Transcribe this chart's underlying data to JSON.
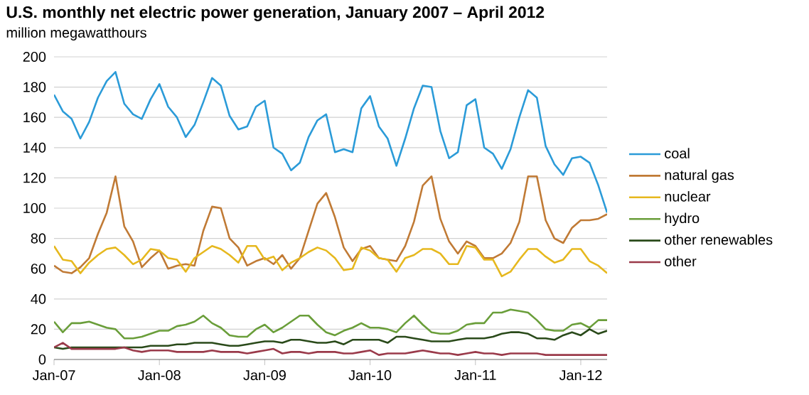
{
  "chart_data": {
    "type": "line",
    "title": "U.S. monthly net electric power generation, January 2007 – April 2012",
    "ylabel": "million megawatthours",
    "x": [
      "2007-01",
      "2007-02",
      "2007-03",
      "2007-04",
      "2007-05",
      "2007-06",
      "2007-07",
      "2007-08",
      "2007-09",
      "2007-10",
      "2007-11",
      "2007-12",
      "2008-01",
      "2008-02",
      "2008-03",
      "2008-04",
      "2008-05",
      "2008-06",
      "2008-07",
      "2008-08",
      "2008-09",
      "2008-10",
      "2008-11",
      "2008-12",
      "2009-01",
      "2009-02",
      "2009-03",
      "2009-04",
      "2009-05",
      "2009-06",
      "2009-07",
      "2009-08",
      "2009-09",
      "2009-10",
      "2009-11",
      "2009-12",
      "2010-01",
      "2010-02",
      "2010-03",
      "2010-04",
      "2010-05",
      "2010-06",
      "2010-07",
      "2010-08",
      "2010-09",
      "2010-10",
      "2010-11",
      "2010-12",
      "2011-01",
      "2011-02",
      "2011-03",
      "2011-04",
      "2011-05",
      "2011-06",
      "2011-07",
      "2011-08",
      "2011-09",
      "2011-10",
      "2011-11",
      "2011-12",
      "2012-01",
      "2012-02",
      "2012-03",
      "2012-04"
    ],
    "series": [
      {
        "name": "coal",
        "color": "#2b9bd8",
        "values": [
          175,
          164,
          159,
          146,
          157,
          173,
          184,
          190,
          169,
          162,
          159,
          172,
          182,
          167,
          160,
          147,
          155,
          170,
          186,
          181,
          161,
          152,
          154,
          167,
          171,
          140,
          136,
          125,
          130,
          147,
          158,
          162,
          137,
          139,
          137,
          166,
          174,
          154,
          146,
          128,
          146,
          166,
          181,
          180,
          151,
          133,
          137,
          168,
          172,
          140,
          136,
          126,
          139,
          160,
          178,
          173,
          141,
          129,
          122,
          133,
          134,
          130,
          115,
          97
        ]
      },
      {
        "name": "natural gas",
        "color": "#c07a35",
        "values": [
          62,
          58,
          57,
          61,
          67,
          83,
          97,
          121,
          88,
          78,
          61,
          67,
          72,
          60,
          62,
          63,
          62,
          85,
          101,
          100,
          80,
          74,
          62,
          65,
          67,
          63,
          69,
          60,
          67,
          85,
          103,
          110,
          94,
          74,
          65,
          73,
          75,
          67,
          66,
          65,
          75,
          91,
          115,
          121,
          93,
          78,
          70,
          78,
          75,
          67,
          67,
          70,
          77,
          91,
          121,
          121,
          92,
          80,
          77,
          87,
          92,
          92,
          93,
          96
        ]
      },
      {
        "name": "nuclear",
        "color": "#e6b81e",
        "values": [
          75,
          66,
          65,
          57,
          64,
          69,
          73,
          74,
          69,
          63,
          66,
          73,
          72,
          67,
          66,
          58,
          67,
          71,
          75,
          73,
          69,
          64,
          75,
          75,
          66,
          68,
          59,
          64,
          67,
          71,
          74,
          72,
          67,
          59,
          60,
          74,
          72,
          67,
          66,
          58,
          67,
          69,
          73,
          73,
          70,
          63,
          63,
          75,
          74,
          66,
          66,
          55,
          58,
          66,
          73,
          73,
          68,
          64,
          66,
          73,
          73,
          65,
          62,
          57
        ]
      },
      {
        "name": "hydro",
        "color": "#6a9e3a",
        "values": [
          25,
          18,
          24,
          24,
          25,
          23,
          21,
          20,
          14,
          14,
          15,
          17,
          19,
          19,
          22,
          23,
          25,
          29,
          24,
          21,
          16,
          15,
          15,
          20,
          23,
          18,
          21,
          25,
          29,
          29,
          23,
          18,
          16,
          19,
          21,
          24,
          21,
          21,
          20,
          18,
          24,
          29,
          23,
          18,
          17,
          17,
          19,
          23,
          24,
          24,
          31,
          31,
          33,
          32,
          31,
          26,
          20,
          19,
          19,
          23,
          24,
          21,
          26,
          26
        ]
      },
      {
        "name": "other renewables",
        "color": "#2a4a1a",
        "values": [
          8,
          7,
          8,
          8,
          8,
          8,
          8,
          8,
          8,
          8,
          8,
          9,
          9,
          9,
          10,
          10,
          11,
          11,
          11,
          10,
          9,
          9,
          10,
          11,
          12,
          12,
          11,
          13,
          13,
          12,
          11,
          11,
          12,
          10,
          13,
          13,
          13,
          13,
          11,
          15,
          15,
          14,
          13,
          12,
          12,
          12,
          13,
          14,
          14,
          14,
          15,
          17,
          18,
          18,
          17,
          14,
          14,
          13,
          16,
          18,
          16,
          20,
          17,
          19
        ]
      },
      {
        "name": "other",
        "color": "#9a3a4a",
        "values": [
          8,
          11,
          7,
          7,
          7,
          7,
          7,
          7,
          8,
          6,
          5,
          6,
          6,
          6,
          5,
          5,
          5,
          5,
          6,
          5,
          5,
          5,
          4,
          5,
          6,
          7,
          4,
          5,
          5,
          4,
          5,
          5,
          5,
          4,
          4,
          5,
          6,
          3,
          4,
          4,
          4,
          5,
          6,
          5,
          4,
          4,
          3,
          4,
          5,
          4,
          4,
          3,
          4,
          4,
          4,
          4,
          3,
          3,
          3,
          3,
          3,
          3,
          3,
          3
        ]
      }
    ],
    "xlim": [
      "2007-01",
      "2012-04"
    ],
    "xticks": [
      {
        "value": "2007-01",
        "label": "Jan-07"
      },
      {
        "value": "2008-01",
        "label": "Jan-08"
      },
      {
        "value": "2009-01",
        "label": "Jan-09"
      },
      {
        "value": "2010-01",
        "label": "Jan-10"
      },
      {
        "value": "2011-01",
        "label": "Jan-11"
      },
      {
        "value": "2012-01",
        "label": "Jan-12"
      }
    ],
    "ylim": [
      0,
      200
    ],
    "yticks": [
      0,
      20,
      40,
      60,
      80,
      100,
      120,
      140,
      160,
      180,
      200
    ],
    "grid": "y",
    "legend": "right",
    "marker": "none",
    "line_style": "solid"
  }
}
